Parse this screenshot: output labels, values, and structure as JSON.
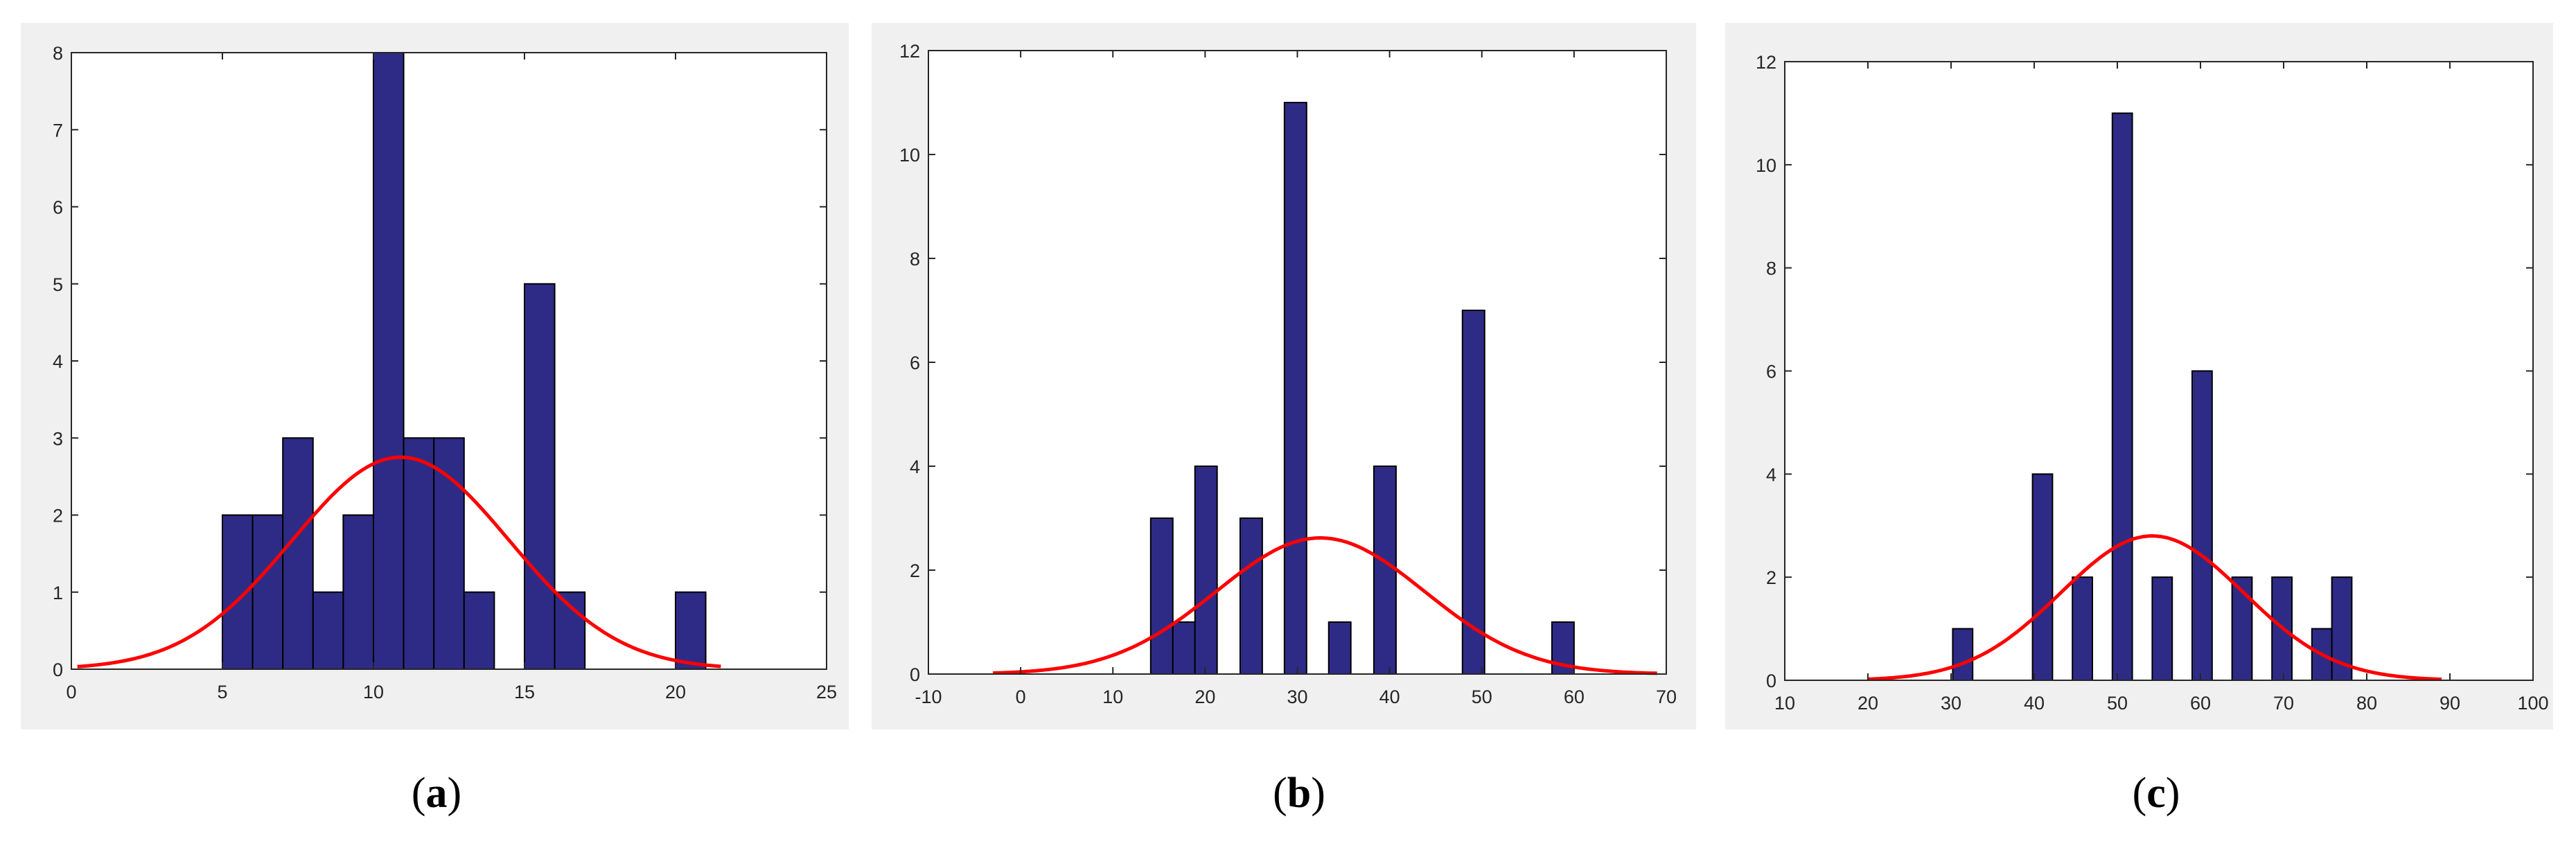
{
  "captions": [
    {
      "open": "(",
      "letter": "a",
      "close": ")"
    },
    {
      "open": "(",
      "letter": "b",
      "close": ")"
    },
    {
      "open": "(",
      "letter": "c",
      "close": ")"
    }
  ],
  "colors": {
    "bar_fill": "#2e2b86",
    "bar_edge": "#000000",
    "fit_curve": "#ff0000",
    "plot_bg": "#ffffff",
    "panel_bg": "#f0f0f0"
  },
  "chart_data": [
    {
      "type": "bar",
      "title": "",
      "xlabel": "",
      "ylabel": "",
      "xlim": [
        0,
        25
      ],
      "ylim": [
        0,
        8
      ],
      "xticks": [
        0,
        5,
        10,
        15,
        20,
        25
      ],
      "yticks": [
        0,
        1,
        2,
        3,
        4,
        5,
        6,
        7,
        8
      ],
      "grid": false,
      "legend": "none",
      "bin_width": 1,
      "bars": [
        {
          "x": 5.5,
          "count": 2
        },
        {
          "x": 6.5,
          "count": 2
        },
        {
          "x": 7.5,
          "count": 3
        },
        {
          "x": 8.5,
          "count": 1
        },
        {
          "x": 9.5,
          "count": 2
        },
        {
          "x": 10.5,
          "count": 8
        },
        {
          "x": 11.5,
          "count": 3
        },
        {
          "x": 12.5,
          "count": 3
        },
        {
          "x": 13.5,
          "count": 1
        },
        {
          "x": 15.5,
          "count": 5
        },
        {
          "x": 16.5,
          "count": 1
        },
        {
          "x": 20.5,
          "count": 1
        }
      ],
      "fit": {
        "type": "normal",
        "mean": 10.9,
        "peak": 2.75,
        "sd": 3.6,
        "x_range": [
          0.2,
          21.5
        ]
      }
    },
    {
      "type": "bar",
      "title": "",
      "xlabel": "",
      "ylabel": "",
      "xlim": [
        -10,
        70
      ],
      "ylim": [
        0,
        12
      ],
      "xticks": [
        -10,
        0,
        10,
        20,
        30,
        40,
        50,
        60,
        70
      ],
      "yticks": [
        0,
        2,
        4,
        6,
        8,
        10,
        12
      ],
      "grid": false,
      "legend": "none",
      "bin_width": 2.4,
      "bars": [
        {
          "x": 15.3,
          "count": 3
        },
        {
          "x": 17.7,
          "count": 1
        },
        {
          "x": 20.1,
          "count": 4
        },
        {
          "x": 25.0,
          "count": 3
        },
        {
          "x": 29.8,
          "count": 11
        },
        {
          "x": 34.6,
          "count": 1
        },
        {
          "x": 39.5,
          "count": 4
        },
        {
          "x": 49.1,
          "count": 7
        },
        {
          "x": 58.8,
          "count": 1
        }
      ],
      "fit": {
        "type": "normal",
        "mean": 32.5,
        "peak": 2.62,
        "sd": 11.3,
        "x_range": [
          -3,
          69
        ]
      }
    },
    {
      "type": "bar",
      "title": "",
      "xlabel": "",
      "ylabel": "",
      "xlim": [
        10,
        100
      ],
      "ylim": [
        0,
        12
      ],
      "xticks": [
        10,
        20,
        30,
        40,
        50,
        60,
        70,
        80,
        90,
        100
      ],
      "yticks": [
        0,
        2,
        4,
        6,
        8,
        10,
        12
      ],
      "grid": false,
      "legend": "none",
      "bin_width": 2.4,
      "bars": [
        {
          "x": 31.4,
          "count": 1
        },
        {
          "x": 41.0,
          "count": 4
        },
        {
          "x": 45.8,
          "count": 2
        },
        {
          "x": 50.6,
          "count": 11
        },
        {
          "x": 55.4,
          "count": 2
        },
        {
          "x": 60.2,
          "count": 6
        },
        {
          "x": 65.0,
          "count": 2
        },
        {
          "x": 69.8,
          "count": 2
        },
        {
          "x": 74.6,
          "count": 1
        },
        {
          "x": 77.0,
          "count": 2
        }
      ],
      "fit": {
        "type": "normal",
        "mean": 54.2,
        "peak": 2.8,
        "sd": 11.0,
        "x_range": [
          20,
          89
        ]
      }
    }
  ]
}
